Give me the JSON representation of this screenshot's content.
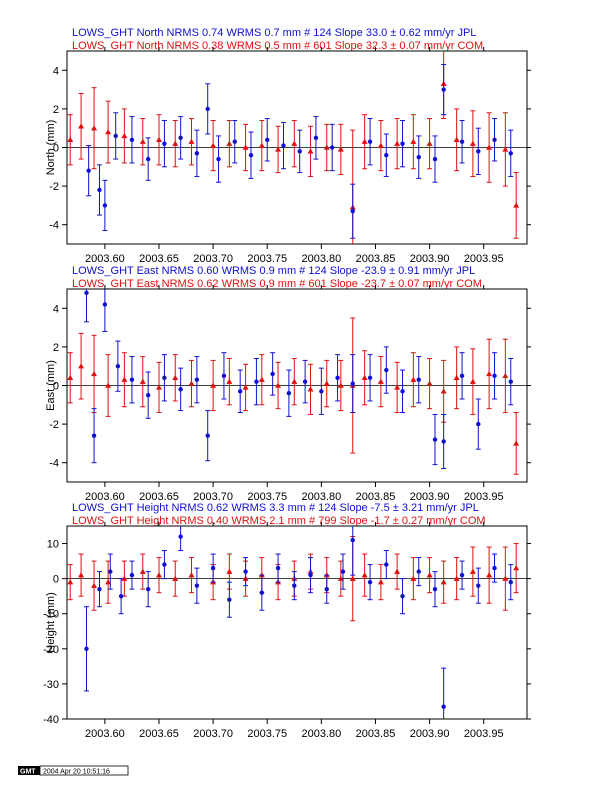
{
  "colors": {
    "jpl": "#1010d0",
    "com": "#e01010",
    "axis": "#000000"
  },
  "stamp": {
    "logo": "GMT",
    "timestamp": "2004 Apr 20 10:51:16"
  },
  "chart_data": [
    {
      "type": "scatter",
      "key": "north",
      "ylabel": "North (mm)",
      "xlim": [
        2003.565,
        2003.99
      ],
      "ylim": [
        -5,
        5
      ],
      "yticks": [
        -4,
        -2,
        0,
        2,
        4
      ],
      "xticks": [
        2003.6,
        2003.65,
        2003.7,
        2003.75,
        2003.8,
        2003.85,
        2003.9,
        2003.95
      ],
      "xtick_labels": [
        "2003.60",
        "2003.65",
        "2003.70",
        "2003.75",
        "2003.80",
        "2003.85",
        "2003.90",
        "2003.95"
      ],
      "legend": [
        {
          "text": "LOWS_GHT North NRMS 0.74 WRMS  0.7 mm # 124 Slope   33.0 ±  0.62 mm/yr JPL",
          "color": "#1010d0"
        },
        {
          "text": "LOWS_GHT North NRMS 0.38 WRMS  0.5 mm # 601 Slope   32.3 ±  0.07 mm/yr COM",
          "color": "#e01010"
        }
      ],
      "series": [
        {
          "name": "JPL",
          "color": "#1010d0",
          "marker": "circle",
          "x": [
            2003.585,
            2003.595,
            2003.6,
            2003.61,
            2003.625,
            2003.64,
            2003.655,
            2003.67,
            2003.685,
            2003.695,
            2003.705,
            2003.72,
            2003.735,
            2003.75,
            2003.765,
            2003.78,
            2003.795,
            2003.81,
            2003.829,
            2003.845,
            2003.86,
            2003.875,
            2003.89,
            2003.905,
            2003.913,
            2003.93,
            2003.945,
            2003.96,
            2003.975
          ],
          "y": [
            -1.2,
            -2.2,
            -3.0,
            0.6,
            0.4,
            -0.6,
            0.2,
            0.5,
            -0.3,
            2.0,
            -0.6,
            0.3,
            -0.4,
            0.4,
            0.1,
            -0.2,
            0.5,
            0.0,
            -3.3,
            0.3,
            -0.4,
            0.2,
            -0.5,
            -0.6,
            3.0,
            0.3,
            -0.2,
            0.4,
            -0.3
          ],
          "err": [
            1.3,
            1.3,
            1.3,
            1.2,
            1.2,
            1.1,
            1.2,
            1.1,
            1.2,
            1.3,
            1.2,
            1.1,
            1.2,
            1.1,
            1.2,
            1.1,
            1.1,
            1.2,
            1.4,
            1.2,
            1.1,
            1.2,
            1.1,
            1.2,
            1.3,
            1.1,
            1.2,
            1.1,
            1.2
          ]
        },
        {
          "name": "COM",
          "color": "#e01010",
          "marker": "triangle",
          "x": [
            2003.568,
            2003.578,
            2003.59,
            2003.603,
            2003.618,
            2003.635,
            2003.65,
            2003.665,
            2003.68,
            2003.7,
            2003.715,
            2003.73,
            2003.745,
            2003.76,
            2003.775,
            2003.79,
            2003.805,
            2003.818,
            2003.829,
            2003.84,
            2003.855,
            2003.87,
            2003.885,
            2003.9,
            2003.913,
            2003.925,
            2003.94,
            2003.955,
            2003.97,
            2003.98
          ],
          "y": [
            0.4,
            1.1,
            1.0,
            0.8,
            0.6,
            0.3,
            0.4,
            0.2,
            0.3,
            0.1,
            0.2,
            0.0,
            0.1,
            -0.1,
            0.2,
            -0.2,
            0.0,
            -0.1,
            -3.1,
            0.3,
            0.1,
            0.2,
            0.3,
            0.2,
            3.3,
            0.4,
            0.2,
            0.0,
            -0.1,
            -3.0
          ],
          "err": [
            1.3,
            1.7,
            2.1,
            1.6,
            1.4,
            1.2,
            1.3,
            1.2,
            1.2,
            1.3,
            1.2,
            1.2,
            1.3,
            1.2,
            1.2,
            1.3,
            1.2,
            1.3,
            4.0,
            1.4,
            1.3,
            1.3,
            1.4,
            1.3,
            1.8,
            1.6,
            1.7,
            1.8,
            1.9,
            1.7
          ]
        }
      ]
    },
    {
      "type": "scatter",
      "key": "east",
      "ylabel": "East (mm)",
      "xlim": [
        2003.565,
        2003.99
      ],
      "ylim": [
        -5,
        5
      ],
      "yticks": [
        -4,
        -2,
        0,
        2,
        4
      ],
      "xticks": [
        2003.6,
        2003.65,
        2003.7,
        2003.75,
        2003.8,
        2003.85,
        2003.9,
        2003.95
      ],
      "xtick_labels": [
        "2003.60",
        "2003.65",
        "2003.70",
        "2003.75",
        "2003.80",
        "2003.85",
        "2003.90",
        "2003.95"
      ],
      "legend": [
        {
          "text": "LOWS_GHT East NRMS 0.60 WRMS  0.9 mm # 124 Slope  -23.9 ±  0.91 mm/yr JPL",
          "color": "#1010d0"
        },
        {
          "text": "LOWS_GHT East NRMS 0.62 WRMS  0.9 mm # 601 Slope  -23.7 ±  0.07 mm/yr COM",
          "color": "#e01010"
        }
      ],
      "series": [
        {
          "name": "JPL",
          "color": "#1010d0",
          "marker": "circle",
          "x": [
            2003.583,
            2003.59,
            2003.6,
            2003.612,
            2003.625,
            2003.64,
            2003.655,
            2003.67,
            2003.685,
            2003.695,
            2003.71,
            2003.725,
            2003.74,
            2003.755,
            2003.77,
            2003.785,
            2003.8,
            2003.815,
            2003.829,
            2003.845,
            2003.86,
            2003.875,
            2003.89,
            2003.905,
            2003.913,
            2003.93,
            2003.945,
            2003.96,
            2003.975
          ],
          "y": [
            4.8,
            -2.6,
            4.2,
            1.0,
            0.3,
            -0.5,
            0.4,
            -0.2,
            0.3,
            -2.6,
            0.5,
            -0.3,
            0.2,
            0.6,
            -0.4,
            0.2,
            -0.3,
            0.4,
            0.1,
            0.4,
            0.8,
            -0.3,
            0.3,
            -2.8,
            -2.9,
            0.5,
            -2.0,
            0.5,
            0.2
          ],
          "err": [
            1.5,
            1.4,
            1.4,
            1.3,
            1.2,
            1.2,
            1.2,
            1.1,
            1.2,
            1.3,
            1.2,
            1.1,
            1.2,
            1.1,
            1.2,
            1.1,
            1.2,
            1.2,
            1.5,
            1.2,
            1.2,
            1.1,
            1.2,
            1.3,
            1.4,
            1.2,
            1.3,
            1.2,
            1.2
          ]
        },
        {
          "name": "COM",
          "color": "#e01010",
          "marker": "triangle",
          "x": [
            2003.568,
            2003.578,
            2003.59,
            2003.603,
            2003.618,
            2003.635,
            2003.65,
            2003.665,
            2003.68,
            2003.7,
            2003.715,
            2003.73,
            2003.745,
            2003.76,
            2003.775,
            2003.79,
            2003.805,
            2003.818,
            2003.829,
            2003.84,
            2003.855,
            2003.87,
            2003.885,
            2003.9,
            2003.913,
            2003.925,
            2003.94,
            2003.955,
            2003.97,
            2003.98
          ],
          "y": [
            0.4,
            1.0,
            0.6,
            0.0,
            0.3,
            0.2,
            -0.1,
            0.4,
            0.1,
            0.0,
            0.2,
            -0.1,
            0.3,
            0.0,
            0.2,
            -0.2,
            0.1,
            0.0,
            0.0,
            0.4,
            0.2,
            -0.1,
            0.3,
            0.1,
            -0.3,
            0.4,
            0.2,
            0.6,
            0.5,
            -3.0
          ],
          "err": [
            1.3,
            1.7,
            2.0,
            1.6,
            1.4,
            1.3,
            1.3,
            1.2,
            1.2,
            1.3,
            1.2,
            1.2,
            1.3,
            1.2,
            1.2,
            1.3,
            1.2,
            1.3,
            3.5,
            1.4,
            1.3,
            1.3,
            1.4,
            1.3,
            1.6,
            1.6,
            1.7,
            1.8,
            1.9,
            1.6
          ]
        }
      ]
    },
    {
      "type": "scatter",
      "key": "height",
      "ylabel": "Height (mm)",
      "xlim": [
        2003.565,
        2003.99
      ],
      "ylim": [
        -40,
        15
      ],
      "yticks": [
        -40,
        -30,
        -20,
        -10,
        0,
        10
      ],
      "xticks": [
        2003.6,
        2003.65,
        2003.7,
        2003.75,
        2003.8,
        2003.85,
        2003.9,
        2003.95
      ],
      "xtick_labels": [
        "2003.60",
        "2003.65",
        "2003.70",
        "2003.75",
        "2003.80",
        "2003.85",
        "2003.90",
        "2003.95"
      ],
      "legend": [
        {
          "text": "LOWS_GHT Height NRMS 0.62 WRMS  3.3 mm # 124 Slope   -7.5 ±  3.21 mm/yr JPL",
          "color": "#1010d0"
        },
        {
          "text": "LOWS_GHT Height NRMS 0.40 WRMS  2.1 mm # 799 Slope   -1.7 ±  0.27 mm/yr COM",
          "color": "#e01010"
        }
      ],
      "series": [
        {
          "name": "JPL",
          "color": "#1010d0",
          "marker": "circle",
          "x": [
            2003.583,
            2003.595,
            2003.605,
            2003.615,
            2003.625,
            2003.64,
            2003.655,
            2003.67,
            2003.685,
            2003.7,
            2003.715,
            2003.73,
            2003.745,
            2003.76,
            2003.775,
            2003.79,
            2003.805,
            2003.82,
            2003.829,
            2003.845,
            2003.86,
            2003.875,
            2003.89,
            2003.905,
            2003.913,
            2003.93,
            2003.945,
            2003.96,
            2003.975
          ],
          "y": [
            -20,
            -3,
            2,
            -5,
            1,
            -3,
            4,
            12,
            -2,
            3,
            -6,
            2,
            -4,
            3,
            -2,
            1,
            -3,
            2,
            11,
            -1,
            4,
            -5,
            2,
            -3,
            -36.5,
            1,
            -2,
            3,
            -1
          ],
          "err": [
            12,
            5,
            5,
            5,
            4,
            5,
            4,
            4,
            5,
            4,
            5,
            4,
            5,
            4,
            4,
            5,
            4,
            5,
            10,
            5,
            4,
            5,
            4,
            5,
            11,
            4,
            5,
            4,
            5
          ]
        },
        {
          "name": "COM",
          "color": "#e01010",
          "marker": "triangle",
          "x": [
            2003.568,
            2003.578,
            2003.59,
            2003.603,
            2003.618,
            2003.635,
            2003.65,
            2003.665,
            2003.68,
            2003.7,
            2003.715,
            2003.73,
            2003.745,
            2003.76,
            2003.775,
            2003.79,
            2003.805,
            2003.818,
            2003.829,
            2003.84,
            2003.855,
            2003.87,
            2003.885,
            2003.9,
            2003.913,
            2003.925,
            2003.94,
            2003.955,
            2003.97,
            2003.98
          ],
          "y": [
            -1,
            1,
            -2,
            -1,
            0,
            2,
            1,
            0,
            1,
            -1,
            2,
            0,
            1,
            -1,
            0,
            2,
            1,
            0,
            0,
            1,
            -1,
            2,
            0,
            1,
            -1,
            0,
            2,
            1,
            0,
            3
          ],
          "err": [
            5,
            6,
            7,
            6,
            5,
            5,
            5,
            5,
            5,
            5,
            5,
            5,
            5,
            5,
            5,
            5,
            5,
            5,
            12,
            6,
            5,
            5,
            6,
            5,
            6,
            6,
            7,
            8,
            9,
            7
          ]
        }
      ]
    }
  ]
}
